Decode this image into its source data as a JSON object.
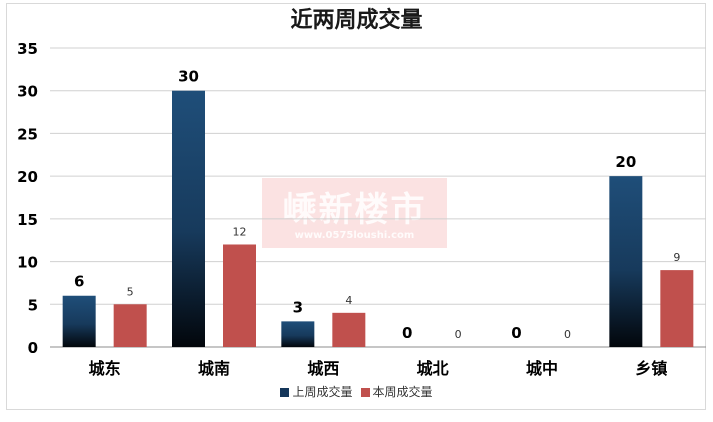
{
  "chart_data": {
    "type": "bar",
    "title": "近两周成交量",
    "categories": [
      "城东",
      "城南",
      "城西",
      "城北",
      "城中",
      "乡镇"
    ],
    "series": [
      {
        "name": "上周成交量",
        "values": [
          6,
          30,
          3,
          0,
          0,
          20
        ],
        "color": "#1f4e79"
      },
      {
        "name": "本周成交量",
        "values": [
          5,
          12,
          4,
          0,
          0,
          9
        ],
        "color": "#c0504d"
      }
    ],
    "ylim": [
      0,
      35
    ],
    "yticks": [
      0,
      5,
      10,
      15,
      20,
      25,
      30,
      35
    ],
    "grid": true,
    "legend_position": "bottom",
    "data_labels": true
  },
  "watermark": {
    "text": "嵊新楼市",
    "url": "www.0575loushi.com"
  }
}
